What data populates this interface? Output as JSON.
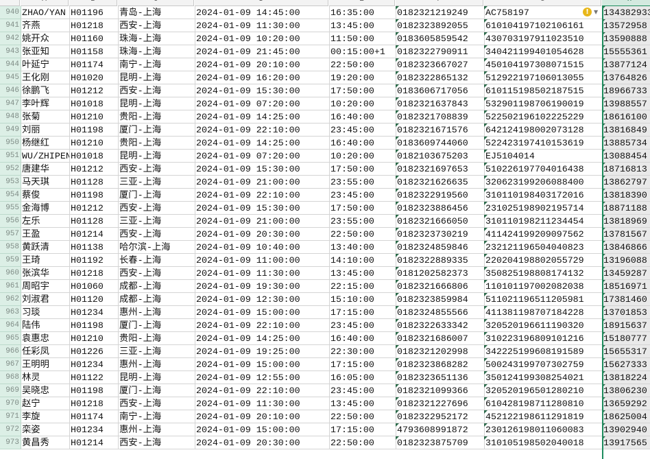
{
  "columns": [
    "A",
    "B",
    "C",
    "D",
    "E",
    "F",
    "G",
    "H"
  ],
  "selected_column": "H",
  "warning_cell": "G940",
  "rows": [
    {
      "n": "940",
      "a": "ZHAO/YAN",
      "b": "H01196",
      "c": "青岛-上海",
      "d": "2024-01-09 14:45:00",
      "e": "16:35:00",
      "f": "0182321219249",
      "g": "AC758197",
      "h": "134382933"
    },
    {
      "n": "941",
      "a": "齐燕",
      "b": "H01218",
      "c": "西安-上海",
      "d": "2024-01-09 11:30:00",
      "e": "13:45:00",
      "f": "0182323892055",
      "g": "610104197102106161",
      "h": "13572958"
    },
    {
      "n": "942",
      "a": "姚开众",
      "b": "H01160",
      "c": "珠海-上海",
      "d": "2024-01-09 10:20:00",
      "e": "11:50:00",
      "f": "0183605859542",
      "g": "430703197911023510",
      "h": "13590888"
    },
    {
      "n": "943",
      "a": "张亚知",
      "b": "H01158",
      "c": "珠海-上海",
      "d": "2024-01-09 21:45:00",
      "e": "00:15:00+1",
      "f": "0182322790911",
      "g": "340421199401054628",
      "h": "15555361"
    },
    {
      "n": "944",
      "a": "叶延宁",
      "b": "H01174",
      "c": "南宁-上海",
      "d": "2024-01-09 20:10:00",
      "e": "22:50:00",
      "f": "0182323667027",
      "g": "450104197308071515",
      "h": "13877124"
    },
    {
      "n": "945",
      "a": "王化刚",
      "b": "H01020",
      "c": "昆明-上海",
      "d": "2024-01-09 16:20:00",
      "e": "19:20:00",
      "f": "0182322865132",
      "g": "512922197106013055",
      "h": "13764826"
    },
    {
      "n": "946",
      "a": "徐鹏飞",
      "b": "H01212",
      "c": "西安-上海",
      "d": "2024-01-09 15:30:00",
      "e": "17:50:00",
      "f": "0183606717056",
      "g": "610115198502187515",
      "h": "18966733"
    },
    {
      "n": "947",
      "a": "李叶辉",
      "b": "H01018",
      "c": "昆明-上海",
      "d": "2024-01-09 07:20:00",
      "e": "10:20:00",
      "f": "0182321637843",
      "g": "532901198706190019",
      "h": "13988557"
    },
    {
      "n": "948",
      "a": "张菊",
      "b": "H01210",
      "c": "贵阳-上海",
      "d": "2024-01-09 14:25:00",
      "e": "16:40:00",
      "f": "0182321708839",
      "g": "522502196102225229",
      "h": "18616100"
    },
    {
      "n": "949",
      "a": "刘丽",
      "b": "H01198",
      "c": "厦门-上海",
      "d": "2024-01-09 22:10:00",
      "e": "23:45:00",
      "f": "0182321671576",
      "g": "642124198002073128",
      "h": "13816849"
    },
    {
      "n": "950",
      "a": "杨继红",
      "b": "H01210",
      "c": "贵阳-上海",
      "d": "2024-01-09 14:25:00",
      "e": "16:40:00",
      "f": "0183609744060",
      "g": "522423197410153619",
      "h": "13885734"
    },
    {
      "n": "951",
      "a": "WU/ZHIPEN",
      "b": "H01018",
      "c": "昆明-上海",
      "d": "2024-01-09 07:20:00",
      "e": "10:20:00",
      "f": "0182103675203",
      "g": "EJ5104014",
      "h": "13088454"
    },
    {
      "n": "952",
      "a": "唐建华",
      "b": "H01212",
      "c": "西安-上海",
      "d": "2024-01-09 15:30:00",
      "e": "17:50:00",
      "f": "0182321697653",
      "g": "510226197704016438",
      "h": "18716813"
    },
    {
      "n": "953",
      "a": "马天琪",
      "b": "H01128",
      "c": "三亚-上海",
      "d": "2024-01-09 21:00:00",
      "e": "23:55:00",
      "f": "0182321626635",
      "g": "320623199206088400",
      "h": "13862797"
    },
    {
      "n": "954",
      "a": "蔡俊",
      "b": "H01198",
      "c": "厦门-上海",
      "d": "2024-01-09 22:10:00",
      "e": "23:45:00",
      "f": "0182322919560",
      "g": "310110198403172016",
      "h": "13818390"
    },
    {
      "n": "955",
      "a": "金海博",
      "b": "H01212",
      "c": "西安-上海",
      "d": "2024-01-09 15:30:00",
      "e": "17:50:00",
      "f": "0182323886456",
      "g": "231025198902195714",
      "h": "18871188"
    },
    {
      "n": "956",
      "a": "左乐",
      "b": "H01128",
      "c": "三亚-上海",
      "d": "2024-01-09 21:00:00",
      "e": "23:55:00",
      "f": "0182321666050",
      "g": "310110198211234454",
      "h": "13818969"
    },
    {
      "n": "957",
      "a": "王盈",
      "b": "H01214",
      "c": "西安-上海",
      "d": "2024-01-09 20:30:00",
      "e": "22:50:00",
      "f": "0182323730219",
      "g": "411424199209097562",
      "h": "13781567"
    },
    {
      "n": "958",
      "a": "黄跃清",
      "b": "H01138",
      "c": "哈尔滨-上海",
      "d": "2024-01-09 10:40:00",
      "e": "13:40:00",
      "f": "0182324859846",
      "g": "232121196504040823",
      "h": "13846866"
    },
    {
      "n": "959",
      "a": "王琦",
      "b": "H01192",
      "c": "长春-上海",
      "d": "2024-01-09 11:00:00",
      "e": "14:10:00",
      "f": "0182322889335",
      "g": "220204198802055729",
      "h": "13196088"
    },
    {
      "n": "960",
      "a": "张滨华",
      "b": "H01218",
      "c": "西安-上海",
      "d": "2024-01-09 11:30:00",
      "e": "13:45:00",
      "f": "0181202582373",
      "g": "350825198808174132",
      "h": "13459287"
    },
    {
      "n": "961",
      "a": "周昭宇",
      "b": "H01060",
      "c": "成都-上海",
      "d": "2024-01-09 19:30:00",
      "e": "22:15:00",
      "f": "0182321666806",
      "g": "110101197002082038",
      "h": "18516971"
    },
    {
      "n": "962",
      "a": "刘淑君",
      "b": "H01120",
      "c": "成都-上海",
      "d": "2024-01-09 12:30:00",
      "e": "15:10:00",
      "f": "0182323859984",
      "g": "511021196511205981",
      "h": "17381460"
    },
    {
      "n": "963",
      "a": "习琰",
      "b": "H01234",
      "c": "惠州-上海",
      "d": "2024-01-09 15:00:00",
      "e": "17:15:00",
      "f": "0182324855566",
      "g": "411381198707184228",
      "h": "13701853"
    },
    {
      "n": "964",
      "a": "陆伟",
      "b": "H01198",
      "c": "厦门-上海",
      "d": "2024-01-09 22:10:00",
      "e": "23:45:00",
      "f": "0182322633342",
      "g": "320520196611190320",
      "h": "18915637"
    },
    {
      "n": "965",
      "a": "袁惠忠",
      "b": "H01210",
      "c": "贵阳-上海",
      "d": "2024-01-09 14:25:00",
      "e": "16:40:00",
      "f": "0182321686007",
      "g": "310223196809101216",
      "h": "15180777"
    },
    {
      "n": "966",
      "a": "任彩凤",
      "b": "H01226",
      "c": "三亚-上海",
      "d": "2024-01-09 19:25:00",
      "e": "22:30:00",
      "f": "0182321202998",
      "g": "342225199608191589",
      "h": "15655317"
    },
    {
      "n": "967",
      "a": "王明明",
      "b": "H01234",
      "c": "惠州-上海",
      "d": "2024-01-09 15:00:00",
      "e": "17:15:00",
      "f": "0182323868282",
      "g": "500243199707302759",
      "h": "15627333"
    },
    {
      "n": "968",
      "a": "林灵",
      "b": "H01122",
      "c": "昆明-上海",
      "d": "2024-01-09 12:55:00",
      "e": "16:05:00",
      "f": "0182323651136",
      "g": "350124199308254021",
      "h": "13818224"
    },
    {
      "n": "969",
      "a": "吴晓忠",
      "b": "H01198",
      "c": "厦门-上海",
      "d": "2024-01-09 22:10:00",
      "e": "23:45:00",
      "f": "0182321099366",
      "g": "320520196501280210",
      "h": "13806230"
    },
    {
      "n": "970",
      "a": "赵宁",
      "b": "H01218",
      "c": "西安-上海",
      "d": "2024-01-09 11:30:00",
      "e": "13:45:00",
      "f": "0182321227696",
      "g": "610428198711280810",
      "h": "13659292"
    },
    {
      "n": "971",
      "a": "李旋",
      "b": "H01174",
      "c": "南宁-上海",
      "d": "2024-01-09 20:10:00",
      "e": "22:50:00",
      "f": "0182322952172",
      "g": "452122198611291819",
      "h": "18625004"
    },
    {
      "n": "972",
      "a": "栾姿",
      "b": "H01234",
      "c": "惠州-上海",
      "d": "2024-01-09 15:00:00",
      "e": "17:15:00",
      "f": "4793608991872",
      "g": "230126198011060083",
      "h": "13902940"
    },
    {
      "n": "973",
      "a": "黄昌秀",
      "b": "H01214",
      "c": "西安-上海",
      "d": "2024-01-09 20:30:00",
      "e": "22:50:00",
      "f": "0182323875709",
      "g": "310105198502040018",
      "h": "13917565"
    }
  ]
}
